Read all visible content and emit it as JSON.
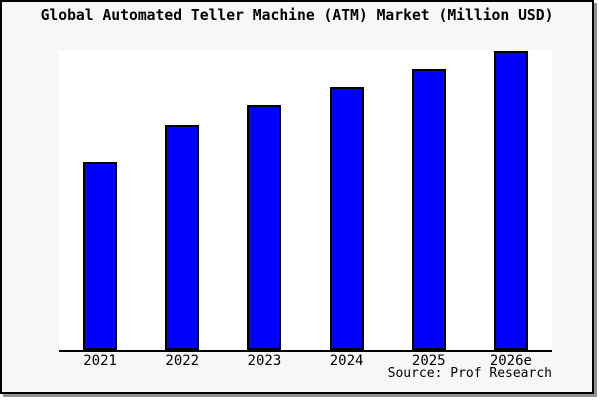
{
  "window": {
    "background": "#f7f7f7",
    "border_color": "#000000",
    "shadow_color": "#909090",
    "plot_background": "#ffffff"
  },
  "header": {
    "title": "Global Automated Teller Machine (ATM) Market (Million USD)"
  },
  "footer": {
    "source": "Source: Prof Research"
  },
  "chart_data": {
    "type": "bar",
    "title": "Global Automated Teller Machine (ATM) Market (Million USD)",
    "categories": [
      "2021",
      "2022",
      "2023",
      "2024",
      "2025",
      "2026e"
    ],
    "values": [
      188,
      225,
      245,
      263,
      281,
      299
    ],
    "value_note": "no y-axis scale shown; values are relative bar heights in pixels",
    "xlabel": "",
    "ylabel": "",
    "ylim": [
      0,
      300
    ],
    "grid": false,
    "legend": false,
    "bar_color": "#0000ff",
    "bar_border_color": "#000000",
    "source_annotation": "Source: Prof Research"
  }
}
